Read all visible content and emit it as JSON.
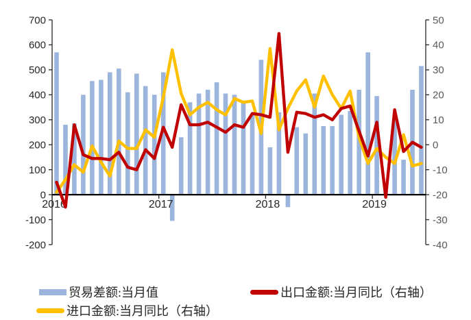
{
  "chart_data": {
    "type": "combo",
    "title": "",
    "months": [
      "2016-01",
      "2016-02",
      "2016-03",
      "2016-04",
      "2016-05",
      "2016-06",
      "2016-07",
      "2016-08",
      "2016-09",
      "2016-10",
      "2016-11",
      "2016-12",
      "2017-01",
      "2017-02",
      "2017-03",
      "2017-04",
      "2017-05",
      "2017-06",
      "2017-07",
      "2017-08",
      "2017-09",
      "2017-10",
      "2017-11",
      "2017-12",
      "2018-01",
      "2018-02",
      "2018-03",
      "2018-04",
      "2018-05",
      "2018-06",
      "2018-07",
      "2018-08",
      "2018-09",
      "2018-10",
      "2018-11",
      "2018-12",
      "2019-01",
      "2019-02",
      "2019-03",
      "2019-04",
      "2019-05",
      "2019-06"
    ],
    "series": [
      {
        "name": "贸易差额:当月值",
        "type": "bar",
        "axis": "left",
        "color": "#9BB5DC",
        "values": [
          570,
          280,
          285,
          400,
          455,
          460,
          490,
          505,
          410,
          485,
          435,
          400,
          490,
          -105,
          230,
          370,
          405,
          420,
          450,
          405,
          400,
          370,
          320,
          540,
          190,
          330,
          -50,
          270,
          245,
          405,
          275,
          275,
          320,
          335,
          420,
          570,
          395,
          45,
          300,
          140,
          420,
          515
        ]
      },
      {
        "name": "出口金额:当月同比（右轴）",
        "type": "line",
        "axis": "right",
        "color": "#C00000",
        "values": [
          -15,
          -25,
          8,
          -4,
          -5.5,
          -5.5,
          -6,
          -3,
          -9,
          -10,
          -2,
          -5.5,
          7,
          -1,
          16,
          8,
          8,
          9,
          7,
          5,
          8,
          7,
          12.5,
          12,
          11,
          44.5,
          -3,
          13,
          12.5,
          11,
          12,
          10,
          14.5,
          15.5,
          5.5,
          -4.5,
          9,
          -21,
          14,
          -2.7,
          1,
          -1
        ]
      },
      {
        "name": "进口金额:当月同比（右轴）",
        "type": "line",
        "axis": "right",
        "color": "#FFC000",
        "values": [
          -19,
          -14,
          -8,
          -11,
          -0.5,
          -7,
          -12.5,
          1.5,
          -1.5,
          -1.5,
          6,
          3,
          19,
          38,
          20.5,
          12,
          15,
          17,
          14,
          12,
          18.5,
          17,
          17.5,
          4.5,
          38.5,
          6,
          14.5,
          21.5,
          26,
          15,
          27.5,
          20,
          14.5,
          21.5,
          3,
          -7.5,
          -1.5,
          -5,
          -7.5,
          4,
          -8.5,
          -7.5
        ]
      }
    ],
    "left_axis": {
      "min": -200,
      "max": 700,
      "step": 100,
      "ticks": [
        "700",
        "600",
        "500",
        "400",
        "300",
        "200",
        "100",
        "0",
        "-100",
        "-200"
      ]
    },
    "right_axis": {
      "min": -40,
      "max": 50,
      "step": 10,
      "ticks": [
        "50",
        "40",
        "30",
        "20",
        "10",
        "0",
        "-10",
        "-20",
        "-30",
        "-40"
      ]
    },
    "x_ticks": [
      "2016",
      "2017",
      "2018",
      "2019"
    ],
    "grid": "off",
    "legend_position": "bottom"
  },
  "colors": {
    "bar_blue": "#9BB5DC",
    "line_red": "#C00000",
    "line_yellow": "#FFC000",
    "axis_line": "#262626",
    "zero_line": "#000000",
    "label_left": "#262626",
    "label_right": "#595959"
  }
}
